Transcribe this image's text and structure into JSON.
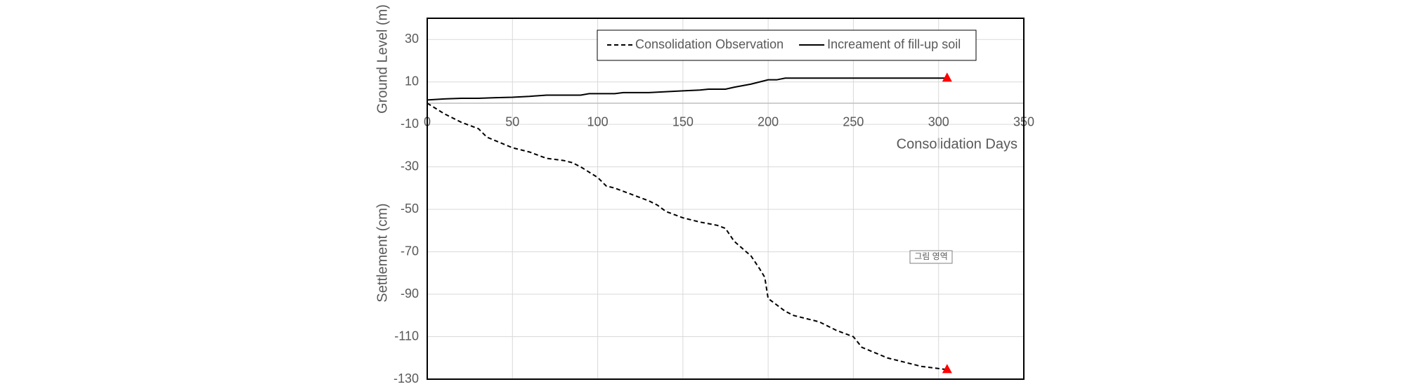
{
  "chart_data": {
    "type": "line",
    "xlabel": "Consolidation Days",
    "ylabel_upper": "Ground Level (m)",
    "ylabel_lower": "Settlement (cm)",
    "annotation": "그림 영역",
    "xlim": [
      0,
      350
    ],
    "xticks": [
      0,
      50,
      100,
      150,
      200,
      250,
      300,
      350
    ],
    "ylim": [
      -130,
      40
    ],
    "yticks": [
      30,
      10,
      -10,
      -30,
      -50,
      -70,
      -90,
      -110,
      -130
    ],
    "grid": true,
    "legend": "top",
    "end_marker_color": "#ff0000",
    "series": [
      {
        "name": "Consolidation Observation",
        "color": "#000000",
        "style": "dashed",
        "x": [
          0,
          10,
          20,
          30,
          35,
          50,
          60,
          70,
          80,
          85,
          90,
          100,
          105,
          110,
          120,
          130,
          135,
          140,
          150,
          160,
          170,
          175,
          180,
          190,
          195,
          198,
          200,
          210,
          215,
          230,
          240,
          250,
          255,
          270,
          290,
          305
        ],
        "values": [
          0,
          -5,
          -9,
          -12,
          -16,
          -21,
          -23,
          -26,
          -27,
          -28,
          -30,
          -35,
          -39,
          -40,
          -43,
          -46,
          -48,
          -51,
          -54,
          -56,
          -57.5,
          -59,
          -65,
          -72,
          -78,
          -82,
          -92,
          -98,
          -100,
          -103,
          -107,
          -110,
          -115,
          -120,
          -124,
          -125.5
        ]
      },
      {
        "name": "Increament of fill-up soil",
        "color": "#000000",
        "style": "solid",
        "x": [
          0,
          10,
          20,
          30,
          40,
          50,
          60,
          70,
          80,
          90,
          95,
          110,
          115,
          130,
          140,
          150,
          160,
          165,
          175,
          180,
          190,
          200,
          205,
          210,
          250,
          305
        ],
        "values": [
          1.5,
          2,
          2.3,
          2.3,
          2.6,
          2.8,
          3.2,
          3.8,
          3.8,
          3.8,
          4.5,
          4.5,
          5,
          5,
          5.4,
          5.8,
          6.2,
          6.6,
          6.6,
          7.5,
          9,
          11,
          11,
          11.8,
          11.8,
          11.8
        ]
      }
    ]
  }
}
